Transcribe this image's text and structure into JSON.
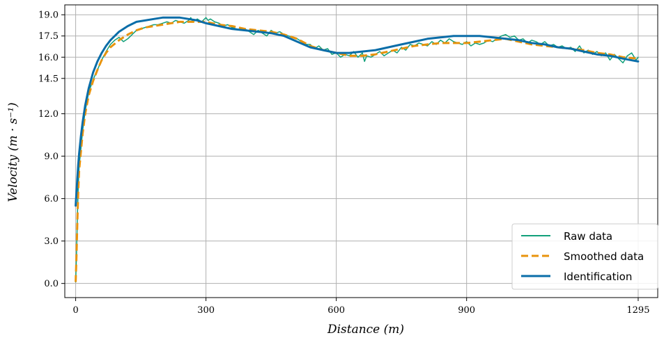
{
  "chart_data": {
    "type": "line",
    "xlabel": "Distance    (m)",
    "ylabel": "Velocity    (m · s⁻¹)",
    "xlim": [
      -25,
      1340
    ],
    "ylim": [
      -1.0,
      19.7
    ],
    "xticks": [
      0,
      300,
      600,
      900,
      1295
    ],
    "yticks": [
      0.0,
      3.0,
      6.0,
      9.0,
      12.0,
      14.5,
      16.0,
      17.5,
      19.0
    ],
    "grid": true,
    "legend_position": "bottom-right",
    "series": [
      {
        "name": "Raw data",
        "color": "#11a07a",
        "style": "solid",
        "x": [
          0,
          2,
          4,
          6,
          8,
          12,
          16,
          22,
          30,
          40,
          50,
          60,
          70,
          80,
          90,
          100,
          110,
          120,
          130,
          140,
          150,
          160,
          170,
          180,
          190,
          200,
          210,
          220,
          230,
          240,
          250,
          260,
          265,
          270,
          280,
          290,
          300,
          305,
          310,
          320,
          330,
          340,
          350,
          360,
          370,
          380,
          390,
          400,
          410,
          420,
          430,
          440,
          450,
          460,
          470,
          480,
          490,
          500,
          510,
          520,
          530,
          540,
          550,
          560,
          570,
          580,
          590,
          600,
          610,
          620,
          630,
          640,
          650,
          660,
          665,
          670,
          680,
          690,
          700,
          710,
          720,
          730,
          740,
          750,
          760,
          770,
          780,
          790,
          800,
          810,
          820,
          830,
          840,
          850,
          860,
          870,
          880,
          890,
          900,
          910,
          920,
          930,
          940,
          950,
          960,
          970,
          980,
          990,
          1000,
          1010,
          1020,
          1030,
          1040,
          1050,
          1060,
          1070,
          1080,
          1090,
          1100,
          1110,
          1120,
          1130,
          1140,
          1150,
          1160,
          1170,
          1180,
          1190,
          1200,
          1210,
          1220,
          1230,
          1240,
          1250,
          1260,
          1270,
          1280,
          1290,
          1295
        ],
        "y": [
          0.1,
          2.0,
          4.8,
          6.8,
          8.3,
          9.5,
          10.8,
          12.2,
          13.5,
          14.4,
          15.1,
          15.8,
          16.4,
          16.9,
          17.2,
          17.4,
          17.1,
          17.3,
          17.6,
          17.9,
          18.0,
          18.1,
          18.2,
          18.3,
          18.3,
          18.4,
          18.5,
          18.4,
          18.6,
          18.5,
          18.4,
          18.6,
          18.8,
          18.5,
          18.7,
          18.5,
          18.8,
          18.6,
          18.7,
          18.5,
          18.4,
          18.2,
          18.3,
          18.1,
          18.0,
          17.9,
          18.0,
          17.8,
          17.6,
          17.9,
          17.7,
          17.5,
          17.9,
          17.7,
          17.8,
          17.6,
          17.5,
          17.4,
          17.3,
          17.1,
          16.9,
          16.9,
          16.6,
          16.8,
          16.5,
          16.6,
          16.2,
          16.3,
          16.0,
          16.2,
          16.1,
          16.4,
          16.0,
          16.3,
          15.7,
          16.1,
          16.0,
          16.2,
          16.4,
          16.1,
          16.3,
          16.5,
          16.3,
          16.7,
          16.5,
          16.9,
          16.8,
          17.0,
          16.9,
          16.8,
          17.1,
          16.9,
          17.2,
          17.0,
          17.3,
          17.1,
          17.0,
          16.9,
          17.1,
          16.8,
          17.0,
          16.9,
          17.0,
          17.2,
          17.1,
          17.3,
          17.5,
          17.6,
          17.4,
          17.5,
          17.2,
          17.3,
          17.0,
          17.2,
          17.1,
          16.9,
          17.1,
          16.8,
          16.9,
          16.7,
          16.8,
          16.6,
          16.7,
          16.4,
          16.8,
          16.3,
          16.5,
          16.2,
          16.4,
          16.1,
          16.3,
          15.8,
          16.2,
          15.9,
          15.6,
          16.1,
          16.3,
          15.8,
          16.0
        ]
      },
      {
        "name": "Smoothed data",
        "color": "#e8930c",
        "style": "dashed",
        "x": [
          0,
          2,
          4,
          6,
          8,
          12,
          16,
          22,
          30,
          40,
          50,
          60,
          70,
          80,
          100,
          120,
          140,
          160,
          180,
          200,
          220,
          240,
          260,
          280,
          300,
          330,
          360,
          390,
          420,
          450,
          480,
          510,
          540,
          570,
          600,
          630,
          660,
          690,
          720,
          750,
          780,
          810,
          840,
          870,
          900,
          930,
          960,
          990,
          1020,
          1050,
          1080,
          1110,
          1140,
          1170,
          1200,
          1230,
          1260,
          1295
        ],
        "y": [
          0.1,
          2.0,
          4.5,
          6.5,
          8.0,
          9.3,
          10.6,
          12.0,
          13.3,
          14.3,
          15.1,
          15.8,
          16.3,
          16.7,
          17.2,
          17.6,
          17.9,
          18.1,
          18.2,
          18.3,
          18.4,
          18.5,
          18.5,
          18.5,
          18.5,
          18.3,
          18.2,
          18.0,
          17.9,
          17.8,
          17.6,
          17.3,
          16.8,
          16.5,
          16.3,
          16.1,
          16.1,
          16.2,
          16.4,
          16.6,
          16.8,
          16.9,
          17.0,
          17.0,
          17.0,
          17.1,
          17.2,
          17.3,
          17.1,
          16.9,
          16.8,
          16.7,
          16.6,
          16.5,
          16.3,
          16.2,
          16.0,
          15.9
        ]
      },
      {
        "name": "Identification",
        "color": "#0a6da8",
        "style": "solid",
        "x": [
          0,
          2,
          4,
          6,
          8,
          12,
          16,
          22,
          30,
          40,
          50,
          60,
          70,
          80,
          100,
          120,
          140,
          160,
          180,
          200,
          220,
          240,
          260,
          280,
          300,
          330,
          360,
          390,
          420,
          450,
          480,
          510,
          540,
          570,
          600,
          630,
          660,
          690,
          720,
          750,
          780,
          810,
          840,
          870,
          900,
          930,
          960,
          990,
          1020,
          1050,
          1080,
          1110,
          1140,
          1170,
          1200,
          1230,
          1260,
          1295
        ],
        "y": [
          5.5,
          6.5,
          7.5,
          8.4,
          9.2,
          10.4,
          11.4,
          12.6,
          13.8,
          14.9,
          15.7,
          16.3,
          16.8,
          17.2,
          17.8,
          18.2,
          18.5,
          18.6,
          18.7,
          18.8,
          18.8,
          18.8,
          18.7,
          18.6,
          18.4,
          18.2,
          18.0,
          17.9,
          17.8,
          17.7,
          17.5,
          17.1,
          16.7,
          16.5,
          16.3,
          16.3,
          16.4,
          16.5,
          16.7,
          16.9,
          17.1,
          17.3,
          17.4,
          17.5,
          17.5,
          17.5,
          17.4,
          17.3,
          17.2,
          17.0,
          16.9,
          16.7,
          16.6,
          16.4,
          16.2,
          16.1,
          15.9,
          15.7
        ]
      }
    ]
  }
}
